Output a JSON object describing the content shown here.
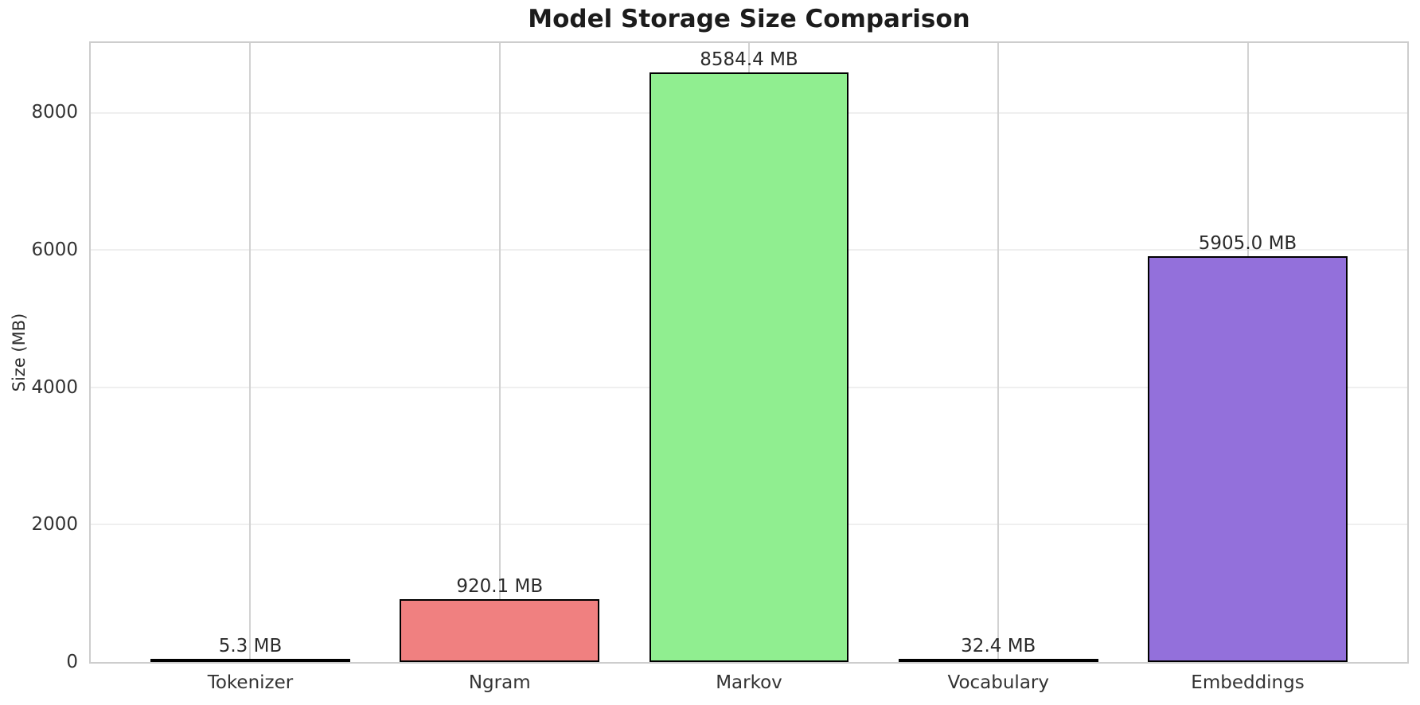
{
  "chart_data": {
    "type": "bar",
    "title": "Model Storage Size Comparison",
    "xlabel": "",
    "ylabel": "Size (MB)",
    "categories": [
      "Tokenizer",
      "Ngram",
      "Markov",
      "Vocabulary",
      "Embeddings"
    ],
    "values": [
      5.3,
      920.1,
      8584.4,
      32.4,
      5905.0
    ],
    "value_labels": [
      "5.3 MB",
      "920.1 MB",
      "8584.4 MB",
      "32.4 MB",
      "5905.0 MB"
    ],
    "bar_colors": [
      "#87CEEB",
      "#F08080",
      "#90EE90",
      "#FFD700",
      "#9370DB"
    ],
    "bar_edge_color": "#000000",
    "y_ticks": [
      0,
      2000,
      4000,
      6000,
      8000
    ],
    "y_tick_labels": [
      "0",
      "2000",
      "4000",
      "6000",
      "8000"
    ],
    "ylim": [
      0,
      9013.6
    ],
    "xlim": [
      -0.64,
      4.64
    ],
    "bar_width": 0.8,
    "grid": true,
    "legend": false,
    "colors": {
      "spine": "#cdcdcd",
      "horizontal_grid": "#efefef",
      "vertical_grid": "#d2d2d2",
      "title_text": "#1c1c1c",
      "tick_text": "#333333",
      "value_label_text": "#2b2b2b",
      "background": "#ffffff"
    }
  }
}
